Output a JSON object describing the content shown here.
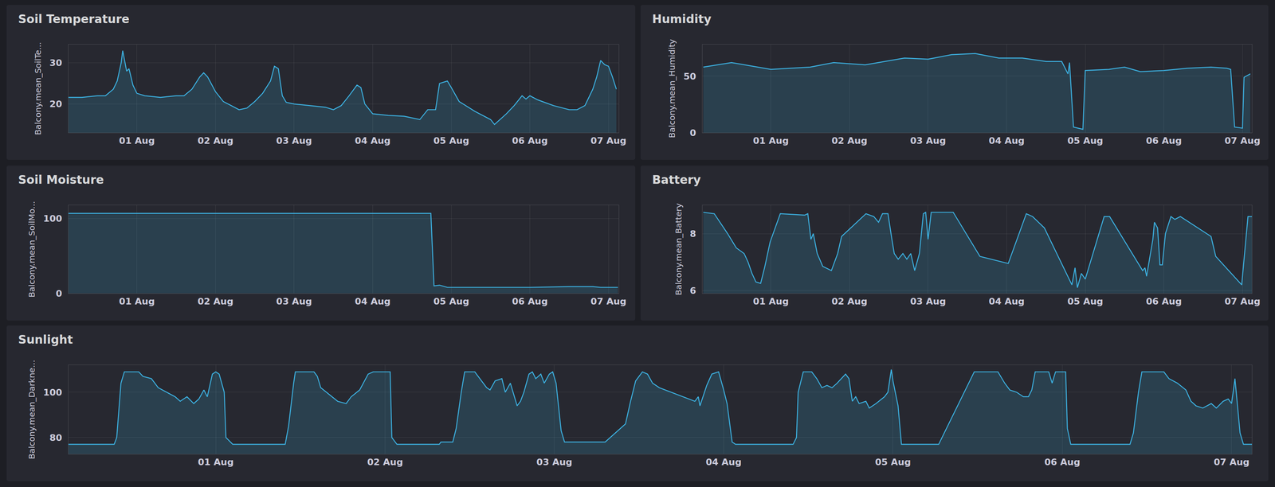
{
  "chart_data": [
    {
      "type": "area",
      "title": "Soil Temperature",
      "y_label": "Balcony.mean_SoilTe...",
      "color": "#3db5e6",
      "grid": true,
      "xlim": [
        0.13,
        7.13
      ],
      "ylim": [
        13,
        34.5
      ],
      "xticks": [
        {
          "value": 1,
          "label": "01 Aug"
        },
        {
          "value": 2,
          "label": "02 Aug"
        },
        {
          "value": 3,
          "label": "03 Aug"
        },
        {
          "value": 4,
          "label": "04 Aug"
        },
        {
          "value": 5,
          "label": "05 Aug"
        },
        {
          "value": 6,
          "label": "06 Aug"
        },
        {
          "value": 7,
          "label": "07 Aug"
        }
      ],
      "yticks": [
        20,
        30
      ],
      "x": [
        0.13,
        0.3,
        0.5,
        0.6,
        0.7,
        0.75,
        0.8,
        0.82,
        0.87,
        0.9,
        0.95,
        1.0,
        1.1,
        1.3,
        1.5,
        1.6,
        1.7,
        1.8,
        1.85,
        1.9,
        2.0,
        2.1,
        2.2,
        2.3,
        2.4,
        2.5,
        2.6,
        2.7,
        2.75,
        2.8,
        2.85,
        2.9,
        3.0,
        3.2,
        3.4,
        3.5,
        3.6,
        3.7,
        3.8,
        3.85,
        3.9,
        4.0,
        4.2,
        4.4,
        4.6,
        4.7,
        4.8,
        4.85,
        4.95,
        5.0,
        5.1,
        5.3,
        5.5,
        5.55,
        5.7,
        5.8,
        5.9,
        5.95,
        6.0,
        6.1,
        6.3,
        6.5,
        6.6,
        6.7,
        6.8,
        6.85,
        6.9,
        6.95,
        7.0,
        7.05,
        7.1
      ],
      "values": [
        21.6,
        21.6,
        22,
        22,
        23.6,
        25.6,
        30,
        33,
        28,
        28.6,
        24.6,
        22.6,
        22,
        21.6,
        22,
        22,
        23.6,
        26.6,
        27.6,
        26.6,
        23,
        20.6,
        19.6,
        18.6,
        19,
        20.6,
        22.6,
        25.6,
        29.2,
        28.6,
        22,
        20.4,
        20,
        19.6,
        19.2,
        18.6,
        19.6,
        22,
        24.6,
        24,
        20,
        17.6,
        17.2,
        17,
        16.2,
        18.6,
        18.6,
        25,
        25.6,
        24,
        20.6,
        18.2,
        16.2,
        15,
        17.6,
        19.6,
        22,
        21.2,
        22,
        21,
        19.6,
        18.6,
        18.6,
        19.6,
        23.6,
        26.6,
        30.6,
        29.6,
        29.2,
        26.6,
        23.6
      ]
    },
    {
      "type": "area",
      "title": "Humidity",
      "y_label": "Balcony.mean_Humidity",
      "color": "#3db5e6",
      "grid": true,
      "xlim": [
        0.13,
        7.12
      ],
      "ylim": [
        0,
        78
      ],
      "xticks": [
        {
          "value": 1,
          "label": "01 Aug"
        },
        {
          "value": 2,
          "label": "02 Aug"
        },
        {
          "value": 3,
          "label": "03 Aug"
        },
        {
          "value": 4,
          "label": "04 Aug"
        },
        {
          "value": 5,
          "label": "05 Aug"
        },
        {
          "value": 6,
          "label": "06 Aug"
        },
        {
          "value": 7,
          "label": "07 Aug"
        }
      ],
      "yticks": [
        0,
        50
      ],
      "x": [
        0.14,
        0.5,
        1.0,
        1.5,
        1.8,
        2.2,
        2.7,
        3.0,
        3.3,
        3.6,
        3.9,
        4.2,
        4.5,
        4.7,
        4.78,
        4.8,
        4.85,
        4.97,
        5.0,
        5.3,
        5.5,
        5.7,
        6.0,
        6.3,
        6.6,
        6.8,
        6.85,
        6.9,
        7.0,
        7.02,
        7.1
      ],
      "values": [
        58,
        62,
        56,
        58,
        62,
        60,
        66,
        65,
        69,
        70,
        66,
        66,
        63,
        63,
        52,
        62,
        5,
        3,
        55,
        56,
        58,
        54,
        55,
        57,
        58,
        57,
        56,
        5,
        4,
        49,
        52
      ]
    },
    {
      "type": "area",
      "title": "Soil Moisture",
      "y_label": "Balcony.mean_SoilMo...",
      "color": "#3db5e6",
      "grid": true,
      "xlim": [
        0.13,
        7.13
      ],
      "ylim": [
        0,
        118
      ],
      "xticks": [
        {
          "value": 1,
          "label": "01 Aug"
        },
        {
          "value": 2,
          "label": "02 Aug"
        },
        {
          "value": 3,
          "label": "03 Aug"
        },
        {
          "value": 4,
          "label": "04 Aug"
        },
        {
          "value": 5,
          "label": "05 Aug"
        },
        {
          "value": 6,
          "label": "06 Aug"
        },
        {
          "value": 7,
          "label": "07 Aug"
        }
      ],
      "yticks": [
        0,
        100
      ],
      "x": [
        0.13,
        4.74,
        4.78,
        4.85,
        4.95,
        5.5,
        6.0,
        6.5,
        6.8,
        6.9,
        7.12
      ],
      "values": [
        107,
        107,
        10,
        11,
        8,
        8,
        8,
        9,
        9,
        8,
        8
      ]
    },
    {
      "type": "area",
      "title": "Battery",
      "y_label": "Balcony.mean_Battery",
      "color": "#3db5e6",
      "grid": true,
      "xlim": [
        0.13,
        7.12
      ],
      "ylim": [
        5.9,
        9
      ],
      "xticks": [
        {
          "value": 1,
          "label": "01 Aug"
        },
        {
          "value": 2,
          "label": "02 Aug"
        },
        {
          "value": 3,
          "label": "03 Aug"
        },
        {
          "value": 4,
          "label": "04 Aug"
        },
        {
          "value": 5,
          "label": "05 Aug"
        },
        {
          "value": 6,
          "label": "06 Aug"
        },
        {
          "value": 7,
          "label": "07 Aug"
        }
      ],
      "yticks": [
        6,
        8
      ],
      "x": [
        0.14,
        0.28,
        0.45,
        0.56,
        0.66,
        0.71,
        0.76,
        0.81,
        0.87,
        0.92,
        0.99,
        1.12,
        1.43,
        1.47,
        1.51,
        1.54,
        1.59,
        1.66,
        1.77,
        1.85,
        1.9,
        2.21,
        2.31,
        2.37,
        2.42,
        2.49,
        2.54,
        2.57,
        2.62,
        2.68,
        2.73,
        2.78,
        2.83,
        2.89,
        2.94,
        2.97,
        3.0,
        3.04,
        3.32,
        3.66,
        4.02,
        4.25,
        4.33,
        4.48,
        4.83,
        4.87,
        4.9,
        4.95,
        5.0,
        5.24,
        5.31,
        5.73,
        5.76,
        5.78,
        5.86,
        5.88,
        5.92,
        5.95,
        5.98,
        6.02,
        6.09,
        6.14,
        6.21,
        6.6,
        6.66,
        6.99,
        7.07,
        7.12
      ],
      "values": [
        8.75,
        8.7,
        8.0,
        7.5,
        7.3,
        7.0,
        6.6,
        6.3,
        6.25,
        6.8,
        7.7,
        8.7,
        8.65,
        8.7,
        7.8,
        8.0,
        7.3,
        6.85,
        6.7,
        7.3,
        7.9,
        8.7,
        8.6,
        8.4,
        8.7,
        8.7,
        7.8,
        7.3,
        7.1,
        7.3,
        7.1,
        7.3,
        6.7,
        7.3,
        8.7,
        8.75,
        7.8,
        8.75,
        8.75,
        7.2,
        6.95,
        8.7,
        8.6,
        8.2,
        6.2,
        6.8,
        6.1,
        6.6,
        6.4,
        8.6,
        8.6,
        6.7,
        6.8,
        6.5,
        7.8,
        8.4,
        8.2,
        6.9,
        6.9,
        8.0,
        8.6,
        8.5,
        8.6,
        7.9,
        7.2,
        6.2,
        8.6,
        8.6
      ]
    },
    {
      "type": "area",
      "title": "Sunlight",
      "y_label": "Balcony.mean_Darkne...",
      "color": "#3db5e6",
      "grid": true,
      "xlim": [
        0.13,
        7.12
      ],
      "ylim": [
        72.7,
        112
      ],
      "xticks": [
        {
          "value": 1,
          "label": "01 Aug"
        },
        {
          "value": 2,
          "label": "02 Aug"
        },
        {
          "value": 3,
          "label": "03 Aug"
        },
        {
          "value": 4,
          "label": "04 Aug"
        },
        {
          "value": 5,
          "label": "05 Aug"
        },
        {
          "value": 6,
          "label": "06 Aug"
        },
        {
          "value": 7,
          "label": "07 Aug"
        }
      ],
      "yticks": [
        80,
        100
      ],
      "x": [
        0.13,
        0.4,
        0.415,
        0.44,
        0.46,
        0.545,
        0.57,
        0.62,
        0.66,
        0.71,
        0.76,
        0.79,
        0.83,
        0.87,
        0.9,
        0.93,
        0.95,
        0.98,
        1.0,
        1.02,
        1.05,
        1.06,
        1.1,
        1.41,
        1.43,
        1.46,
        1.47,
        1.58,
        1.6,
        1.62,
        1.67,
        1.72,
        1.77,
        1.8,
        1.85,
        1.9,
        1.93,
        2.03,
        2.04,
        2.07,
        2.32,
        2.33,
        2.4,
        2.42,
        2.45,
        2.47,
        2.53,
        2.56,
        2.6,
        2.62,
        2.65,
        2.69,
        2.71,
        2.74,
        2.78,
        2.8,
        2.82,
        2.85,
        2.87,
        2.89,
        2.92,
        2.94,
        2.97,
        2.99,
        3.01,
        3.04,
        3.06,
        3.3,
        3.42,
        3.45,
        3.48,
        3.52,
        3.55,
        3.58,
        3.62,
        3.76,
        3.83,
        3.85,
        3.86,
        3.9,
        3.93,
        3.97,
        4.0,
        4.02,
        4.05,
        4.07,
        4.41,
        4.43,
        4.44,
        4.47,
        4.52,
        4.55,
        4.58,
        4.61,
        4.64,
        4.67,
        4.72,
        4.74,
        4.76,
        4.78,
        4.8,
        4.84,
        4.86,
        4.9,
        4.95,
        4.97,
        4.99,
        5.0,
        5.03,
        5.05,
        5.08,
        5.27,
        5.48,
        5.62,
        5.66,
        5.69,
        5.73,
        5.77,
        5.8,
        5.82,
        5.84,
        5.92,
        5.94,
        5.96,
        6.02,
        6.03,
        6.05,
        6.4,
        6.42,
        6.45,
        6.47,
        6.6,
        6.63,
        6.68,
        6.73,
        6.76,
        6.79,
        6.83,
        6.88,
        6.91,
        6.95,
        6.98,
        7.0,
        7.02,
        7.04,
        7.05,
        7.07,
        7.12
      ],
      "values": [
        77,
        77,
        80,
        104,
        109,
        109,
        107,
        106,
        102,
        100,
        98,
        96,
        98,
        95,
        97,
        101,
        98,
        108,
        109,
        108,
        100,
        80,
        77,
        77,
        85,
        104,
        109,
        109,
        107,
        102,
        99,
        96,
        95,
        98,
        101,
        108,
        109,
        109,
        80,
        77,
        77,
        78,
        78,
        84,
        100,
        109,
        109,
        106,
        102,
        101,
        105,
        106,
        100,
        104,
        94,
        96,
        100,
        108,
        109,
        106,
        108,
        104,
        108,
        109,
        104,
        83,
        78,
        78,
        86,
        96,
        105,
        109,
        108,
        104,
        102,
        98,
        96,
        98,
        94,
        103,
        108,
        109,
        101,
        95,
        78,
        77,
        77,
        80,
        100,
        109,
        109,
        106,
        102,
        103,
        102,
        104,
        108,
        106,
        96,
        98,
        95,
        96,
        93,
        95,
        98,
        100,
        110,
        105,
        94,
        77,
        77,
        77,
        109,
        109,
        104,
        101,
        100,
        98,
        98,
        101,
        109,
        109,
        104,
        109,
        109,
        84,
        77,
        77,
        82,
        100,
        109,
        109,
        106,
        104,
        101,
        96,
        94,
        93,
        95,
        93,
        96,
        97,
        95,
        106,
        90,
        82,
        77,
        77
      ]
    }
  ]
}
